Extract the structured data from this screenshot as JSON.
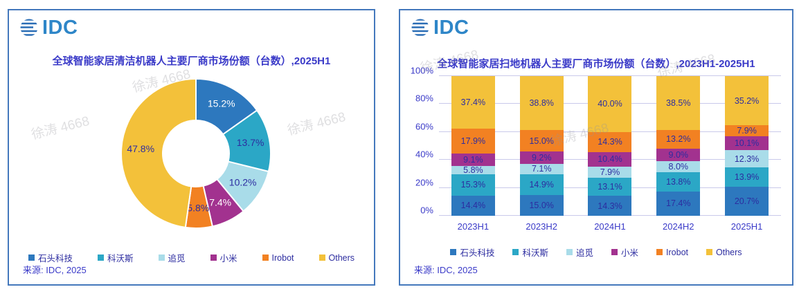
{
  "watermark": {
    "text": "徐涛 4668"
  },
  "panels": [
    {
      "logo_text": "IDC",
      "title": "全球智能家居清洁机器人主要厂商市场份额（台数）,2025H1",
      "source": "来源: IDC, 2025"
    },
    {
      "logo_text": "IDC",
      "title": "全球智能家居扫地机器人主要厂商市场份额（台数）,2023H1-2025H1",
      "source": "来源: IDC, 2025"
    }
  ],
  "legend_labels": [
    "石头科技",
    "科沃斯",
    "追觅",
    "小米",
    "Irobot",
    "Others"
  ],
  "palette": [
    "#2d78be",
    "#2ba7c6",
    "#a9dce9",
    "#a2328f",
    "#f28122",
    "#f3c13a"
  ],
  "chart_data": [
    {
      "type": "pie",
      "donut": true,
      "title": "全球智能家居清洁机器人主要厂商市场份额（台数）,2025H1",
      "labels": [
        "石头科技",
        "科沃斯",
        "追觅",
        "小米",
        "Irobot",
        "Others"
      ],
      "values": [
        15.2,
        13.7,
        10.2,
        7.4,
        5.8,
        47.8
      ],
      "value_labels": [
        "15.2%",
        "13.7%",
        "10.2%",
        "7.4%",
        "5.8%",
        "47.8%"
      ],
      "colors": [
        "#2d78be",
        "#2ba7c6",
        "#a9dce9",
        "#a2328f",
        "#f28122",
        "#f3c13a"
      ],
      "text_colors": [
        "#ffffff",
        "#2d2da0",
        "#2d2da0",
        "#ffffff",
        "#2d2da0",
        "#2d2da0"
      ],
      "start_angle_deg": 0,
      "legend_position": "bottom"
    },
    {
      "type": "bar",
      "stacked": true,
      "title": "全球智能家居扫地机器人主要厂商市场份额（台数）,2023H1-2025H1",
      "categories": [
        "2023H1",
        "2023H2",
        "2024H1",
        "2024H2",
        "2025H1"
      ],
      "series": [
        {
          "name": "石头科技",
          "color": "#2d78be",
          "values": [
            14.4,
            15.0,
            14.3,
            17.4,
            20.7
          ],
          "value_labels": [
            "14.4%",
            "15.0%",
            "14.3%",
            "17.4%",
            "20.7%"
          ]
        },
        {
          "name": "科沃斯",
          "color": "#2ba7c6",
          "values": [
            15.3,
            14.9,
            13.1,
            13.8,
            13.9
          ],
          "value_labels": [
            "15.3%",
            "14.9%",
            "13.1%",
            "13.8%",
            "13.9%"
          ]
        },
        {
          "name": "追觅",
          "color": "#a9dce9",
          "values": [
            5.8,
            7.1,
            7.9,
            8.0,
            12.3
          ],
          "value_labels": [
            "5.8%",
            "7.1%",
            "7.9%",
            "8.0%",
            "12.3%"
          ]
        },
        {
          "name": "小米",
          "color": "#a2328f",
          "values": [
            9.1,
            9.2,
            10.4,
            9.0,
            10.1
          ],
          "value_labels": [
            "9.1%",
            "9.2%",
            "10.4%",
            "9.0%",
            "10.1%"
          ]
        },
        {
          "name": "Irobot",
          "color": "#f28122",
          "values": [
            17.9,
            15.0,
            14.3,
            13.2,
            7.9
          ],
          "value_labels": [
            "17.9%",
            "15.0%",
            "14.3%",
            "13.2%",
            "7.9%"
          ]
        },
        {
          "name": "Others",
          "color": "#f3c13a",
          "values": [
            37.4,
            38.8,
            40.0,
            38.5,
            35.2
          ],
          "value_labels": [
            "37.4%",
            "38.8%",
            "40.0%",
            "38.5%",
            "35.2%"
          ]
        }
      ],
      "ylim": [
        0,
        100
      ],
      "yticks": [
        "0%",
        "20%",
        "40%",
        "60%",
        "80%",
        "100%"
      ],
      "grid": true,
      "label_text_color": "#2d2da0",
      "legend_position": "bottom"
    }
  ]
}
